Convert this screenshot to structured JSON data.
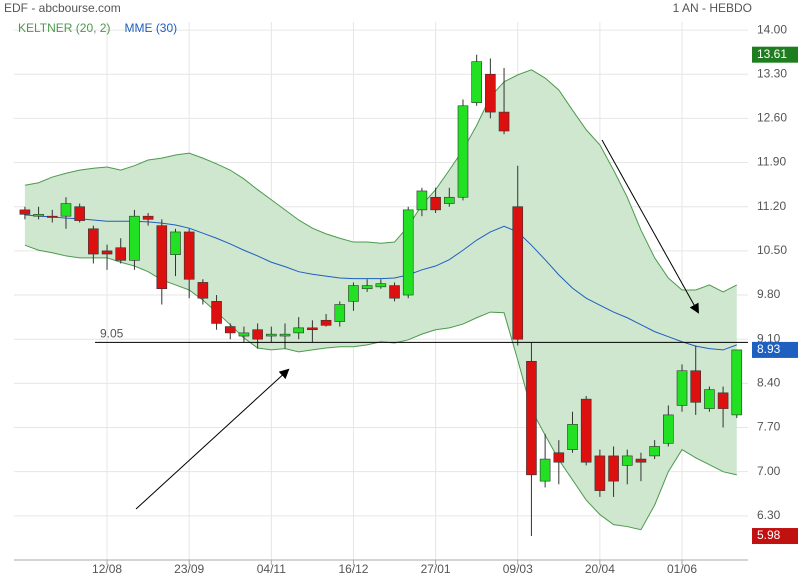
{
  "chart_data": {
    "type": "candlestick",
    "title": "EDF - abcbourse.com",
    "subtitle": "1 AN - HEBDO",
    "categories": [
      null,
      null,
      null,
      null,
      null,
      null,
      "12/08",
      null,
      null,
      null,
      null,
      null,
      "23/09",
      null,
      null,
      null,
      null,
      null,
      "04/11",
      null,
      null,
      null,
      null,
      null,
      "16/12",
      null,
      null,
      null,
      null,
      null,
      "27/01",
      null,
      null,
      null,
      null,
      null,
      "09/03",
      null,
      null,
      null,
      null,
      null,
      "20/04",
      null,
      null,
      null,
      null,
      null,
      "01/06",
      null,
      null,
      null,
      null
    ],
    "open": [
      11.15,
      11.05,
      11.05,
      11.05,
      11.2,
      10.85,
      10.5,
      10.55,
      10.35,
      11.05,
      10.9,
      10.44,
      10.8,
      10.0,
      9.7,
      9.3,
      9.15,
      9.25,
      9.15,
      9.15,
      9.2,
      9.28,
      9.4,
      9.38,
      9.7,
      9.9,
      9.93,
      9.95,
      9.8,
      11.15,
      11.35,
      11.25,
      11.35,
      12.85,
      13.3,
      12.7,
      11.2,
      8.75,
      6.85,
      7.3,
      7.35,
      8.15,
      7.25,
      7.25,
      7.1,
      7.2,
      7.25,
      7.45,
      8.05,
      8.6,
      8.0,
      8.25,
      7.9
    ],
    "high": [
      11.2,
      11.2,
      11.15,
      11.35,
      11.25,
      10.9,
      10.6,
      10.7,
      11.15,
      11.1,
      11.0,
      10.85,
      10.85,
      10.05,
      9.8,
      9.35,
      9.3,
      9.35,
      9.3,
      9.35,
      9.45,
      9.4,
      9.5,
      9.7,
      10.0,
      10.05,
      10.05,
      10.0,
      11.2,
      11.5,
      11.5,
      11.5,
      12.9,
      13.61,
      13.55,
      13.4,
      11.85,
      9.05,
      7.6,
      7.5,
      7.95,
      8.2,
      7.35,
      7.4,
      7.35,
      7.3,
      7.5,
      8.05,
      8.7,
      9.0,
      8.35,
      8.35,
      8.93
    ],
    "low": [
      11.0,
      11.0,
      10.95,
      10.85,
      10.95,
      10.3,
      10.2,
      10.3,
      10.2,
      10.9,
      9.65,
      10.1,
      9.75,
      9.65,
      9.25,
      9.1,
      9.05,
      8.95,
      9.05,
      8.95,
      9.1,
      9.05,
      9.3,
      9.3,
      9.55,
      9.85,
      9.9,
      9.7,
      9.75,
      11.05,
      11.1,
      11.2,
      11.3,
      12.8,
      12.6,
      12.35,
      9.0,
      5.98,
      6.75,
      6.8,
      7.3,
      7.1,
      6.6,
      6.6,
      6.8,
      6.85,
      7.2,
      7.4,
      7.95,
      7.9,
      7.95,
      7.7,
      7.85
    ],
    "close": [
      11.08,
      11.08,
      11.03,
      11.25,
      10.98,
      10.45,
      10.45,
      10.35,
      11.05,
      11.0,
      9.9,
      10.8,
      10.05,
      9.75,
      9.35,
      9.2,
      9.2,
      9.1,
      9.18,
      9.18,
      9.28,
      9.25,
      9.32,
      9.65,
      9.95,
      9.95,
      9.98,
      9.75,
      11.15,
      11.45,
      11.15,
      11.35,
      12.8,
      13.5,
      12.7,
      12.4,
      9.1,
      6.95,
      7.2,
      7.15,
      7.75,
      7.15,
      6.7,
      6.85,
      7.25,
      7.15,
      7.4,
      7.9,
      8.6,
      8.1,
      8.3,
      8.0,
      8.93
    ],
    "up_color": "#22e022",
    "down_color": "#dd1010",
    "series": [
      {
        "name": "KELTNER (20, 2)",
        "color": "#4c9a4c",
        "upper": [
          11.54,
          11.58,
          11.67,
          11.73,
          11.78,
          11.81,
          11.83,
          11.78,
          11.85,
          11.94,
          11.97,
          12.02,
          12.05,
          11.97,
          11.88,
          11.78,
          11.64,
          11.47,
          11.31,
          11.15,
          10.99,
          10.86,
          10.77,
          10.7,
          10.64,
          10.64,
          10.62,
          10.64,
          10.89,
          11.23,
          11.47,
          11.78,
          12.1,
          12.49,
          12.94,
          13.18,
          13.29,
          13.37,
          13.24,
          13.05,
          12.73,
          12.42,
          12.18,
          11.78,
          11.35,
          10.83,
          10.39,
          10.07,
          9.88,
          9.88,
          9.96,
          9.85,
          9.96
        ],
        "lower": [
          10.59,
          10.51,
          10.47,
          10.42,
          10.39,
          10.39,
          10.39,
          10.32,
          10.26,
          10.17,
          10.04,
          9.96,
          9.88,
          9.72,
          9.53,
          9.33,
          9.12,
          8.96,
          8.93,
          8.95,
          8.9,
          8.93,
          8.96,
          8.98,
          8.98,
          9.01,
          9.06,
          9.04,
          9.09,
          9.18,
          9.25,
          9.28,
          9.34,
          9.44,
          9.53,
          9.52,
          8.77,
          7.98,
          7.58,
          7.19,
          6.87,
          6.55,
          6.32,
          6.16,
          6.13,
          6.08,
          6.47,
          7.0,
          7.35,
          7.22,
          7.11,
          7.0,
          6.95
        ]
      },
      {
        "name": "MME (30)",
        "color": "#1f5fbf",
        "values": [
          11.07,
          11.05,
          11.04,
          11.02,
          11.01,
          10.99,
          10.97,
          10.97,
          10.97,
          10.96,
          10.94,
          10.91,
          10.86,
          10.78,
          10.7,
          10.61,
          10.51,
          10.42,
          10.32,
          10.25,
          10.17,
          10.13,
          10.1,
          10.07,
          10.06,
          10.06,
          10.06,
          10.07,
          10.12,
          10.2,
          10.26,
          10.36,
          10.51,
          10.67,
          10.8,
          10.89,
          10.8,
          10.59,
          10.36,
          10.12,
          9.91,
          9.75,
          9.64,
          9.53,
          9.44,
          9.33,
          9.22,
          9.14,
          9.06,
          8.99,
          8.95,
          8.93,
          9.01
        ]
      }
    ],
    "ylim": [
      5.6,
      14.35
    ],
    "yticks": [
      {
        "value": 14,
        "label": "14.00"
      },
      {
        "value": 13.3,
        "label": "13.30"
      },
      {
        "value": 12.6,
        "label": "12.60"
      },
      {
        "value": 11.9,
        "label": "11.90"
      },
      {
        "value": 11.2,
        "label": "11.20"
      },
      {
        "value": 10.5,
        "label": "10.50"
      },
      {
        "value": 9.8,
        "label": "9.80"
      },
      {
        "value": 9.1,
        "label": "9.10"
      },
      {
        "value": 8.4,
        "label": "8.40"
      },
      {
        "value": 7.7,
        "label": "7.70"
      },
      {
        "value": 7,
        "label": "7.00"
      },
      {
        "value": 6.3,
        "label": "6.30"
      }
    ],
    "grid": true,
    "hline": {
      "value": 9.05
    },
    "price_tags": [
      {
        "value": 13.61,
        "color": "#1e7d1e"
      },
      {
        "value": 8.93,
        "color": "#1f5fbf"
      },
      {
        "value": 5.98,
        "color": "#c01010"
      }
    ]
  }
}
